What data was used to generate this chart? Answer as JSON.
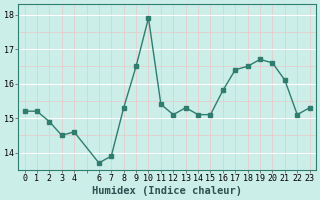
{
  "x": [
    0,
    1,
    2,
    3,
    4,
    6,
    7,
    8,
    9,
    10,
    11,
    12,
    13,
    14,
    15,
    16,
    17,
    18,
    19,
    20,
    21,
    22,
    23
  ],
  "y": [
    15.2,
    15.2,
    14.9,
    14.5,
    14.6,
    13.7,
    13.9,
    15.3,
    16.5,
    17.9,
    15.4,
    15.1,
    15.3,
    15.1,
    15.1,
    15.8,
    16.4,
    16.5,
    16.7,
    16.6,
    16.1,
    15.1,
    15.3
  ],
  "line_color": "#2e7d6e",
  "bg_color": "#cceee8",
  "grid_color_white": "#ffffff",
  "grid_color_pink": "#e8c8c8",
  "xlabel": "Humidex (Indice chaleur)",
  "ylim": [
    13.5,
    18.3
  ],
  "xlim": [
    -0.5,
    23.5
  ],
  "yticks": [
    14,
    15,
    16,
    17,
    18
  ],
  "xticks": [
    0,
    1,
    2,
    3,
    4,
    5,
    6,
    7,
    8,
    9,
    10,
    11,
    12,
    13,
    14,
    15,
    16,
    17,
    18,
    19,
    20,
    21,
    22,
    23
  ],
  "xtick_labels": [
    "0",
    "1",
    "2",
    "3",
    "4",
    "",
    "6",
    "7",
    "8",
    "9",
    "10",
    "11",
    "12",
    "13",
    "14",
    "15",
    "16",
    "17",
    "18",
    "19",
    "20",
    "21",
    "22",
    "23"
  ],
  "marker_size": 2.5,
  "line_width": 1.0,
  "xlabel_fontsize": 7.5,
  "tick_fontsize": 6.0
}
